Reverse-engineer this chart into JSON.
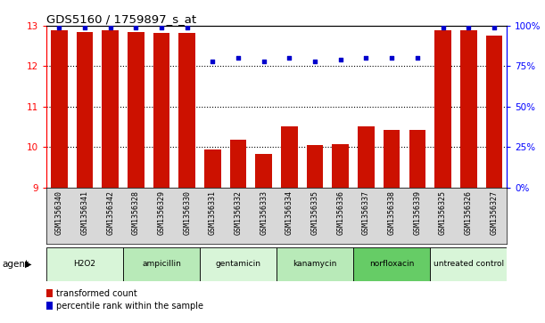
{
  "title": "GDS5160 / 1759897_s_at",
  "samples": [
    "GSM1356340",
    "GSM1356341",
    "GSM1356342",
    "GSM1356328",
    "GSM1356329",
    "GSM1356330",
    "GSM1356331",
    "GSM1356332",
    "GSM1356333",
    "GSM1356334",
    "GSM1356335",
    "GSM1356336",
    "GSM1356337",
    "GSM1356338",
    "GSM1356339",
    "GSM1356325",
    "GSM1356326",
    "GSM1356327"
  ],
  "bar_values": [
    12.9,
    12.85,
    12.9,
    12.85,
    12.82,
    12.82,
    9.93,
    10.18,
    9.82,
    10.52,
    10.05,
    10.07,
    10.52,
    10.42,
    10.42,
    12.88,
    12.88,
    12.75
  ],
  "dot_values": [
    99,
    99,
    99,
    99,
    99,
    99,
    78,
    80,
    78,
    80,
    78,
    79,
    80,
    80,
    80,
    99,
    99,
    99
  ],
  "agents": [
    {
      "label": "H2O2",
      "start": 0,
      "end": 3,
      "color": "#d8f5d8"
    },
    {
      "label": "ampicillin",
      "start": 3,
      "end": 6,
      "color": "#b8eab8"
    },
    {
      "label": "gentamicin",
      "start": 6,
      "end": 9,
      "color": "#d8f5d8"
    },
    {
      "label": "kanamycin",
      "start": 9,
      "end": 12,
      "color": "#b8eab8"
    },
    {
      "label": "norfloxacin",
      "start": 12,
      "end": 15,
      "color": "#66cc66"
    },
    {
      "label": "untreated control",
      "start": 15,
      "end": 18,
      "color": "#d8f5d8"
    }
  ],
  "ylim": [
    9,
    13
  ],
  "y2lim": [
    0,
    100
  ],
  "yticks": [
    9,
    10,
    11,
    12,
    13
  ],
  "y2ticks": [
    0,
    25,
    50,
    75,
    100
  ],
  "y2ticklabels": [
    "0%",
    "25%",
    "50%",
    "75%",
    "100%"
  ],
  "bar_color": "#cc1100",
  "dot_color": "#0000cc",
  "bar_bottom": 9,
  "legend_bar_label": "transformed count",
  "legend_dot_label": "percentile rank within the sample",
  "agent_label": "agent",
  "label_bg": "#d8d8d8",
  "plot_area_bg": "#ffffff"
}
